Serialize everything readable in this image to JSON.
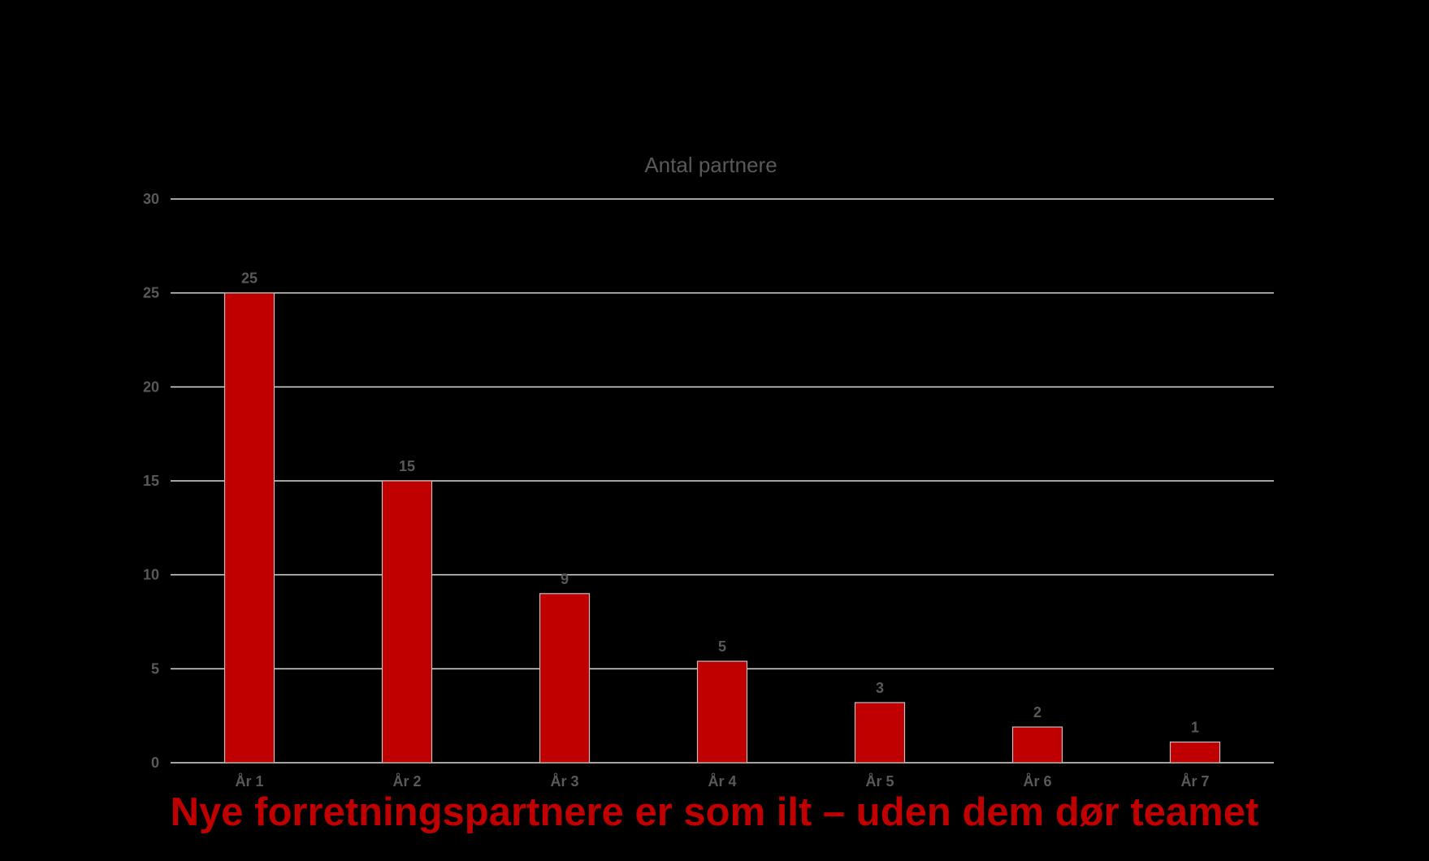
{
  "chart_data": {
    "type": "bar",
    "title": "Antal partnere",
    "categories": [
      "År 1",
      "År 2",
      "År 3",
      "År 4",
      "År 5",
      "År 6",
      "År 7"
    ],
    "values": [
      25,
      15,
      9,
      5.4,
      3.2,
      1.9,
      1.1
    ],
    "data_labels": [
      "25",
      "15",
      "9",
      "5",
      "3",
      "2",
      "1"
    ],
    "ylim": [
      0,
      30
    ],
    "yticks": [
      0,
      5,
      10,
      15,
      20,
      25,
      30
    ],
    "xlabel": "",
    "ylabel": "",
    "grid": true,
    "legend": "none"
  },
  "caption": {
    "text": "Nye forretningspartnere er som ilt – uden dem dør teamet"
  },
  "colors": {
    "background": "#000000",
    "bar_fill": "#c00000",
    "bar_stroke": "#bfbfbf",
    "gridline": "#d9d9d9",
    "axis_text": "#595959",
    "caption": "#c00000"
  }
}
